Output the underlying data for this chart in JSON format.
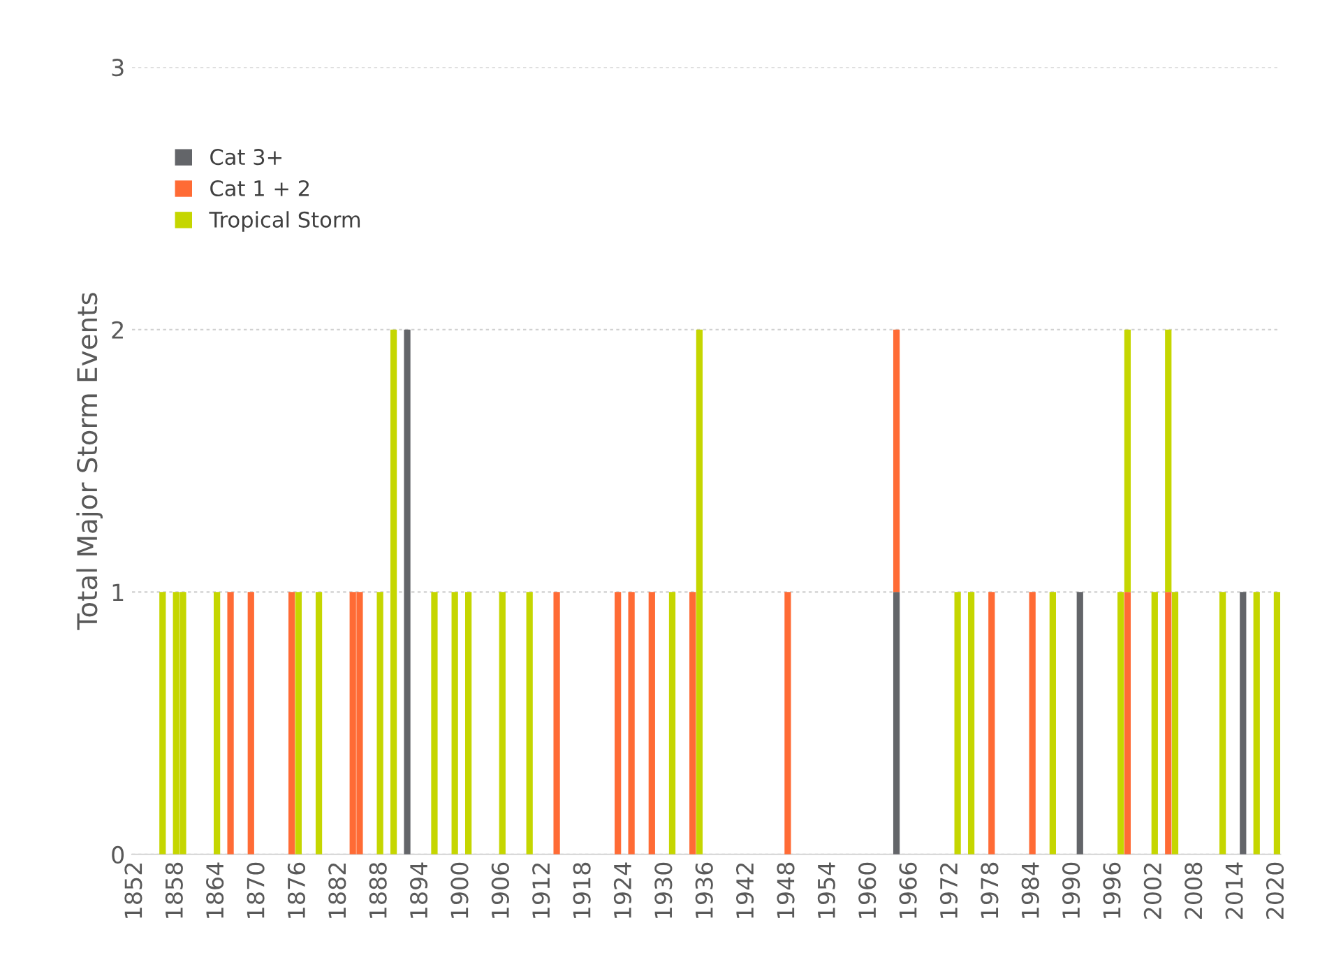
{
  "chart_data": {
    "type": "bar",
    "stacked": true,
    "ylabel": "Total Major Storm Events",
    "categories": [
      "1852",
      null,
      null,
      null,
      null,
      null,
      "1858",
      null,
      null,
      null,
      null,
      null,
      "1864",
      null,
      null,
      null,
      null,
      null,
      "1870",
      null,
      null,
      null,
      null,
      null,
      "1876",
      null,
      null,
      null,
      null,
      null,
      "1882",
      null,
      null,
      null,
      null,
      null,
      "1888",
      null,
      null,
      null,
      null,
      null,
      "1894",
      null,
      null,
      null,
      null,
      null,
      "1900",
      null,
      null,
      null,
      null,
      null,
      "1906",
      null,
      null,
      null,
      null,
      null,
      "1912",
      null,
      null,
      null,
      null,
      null,
      "1918",
      null,
      null,
      null,
      null,
      null,
      "1924",
      null,
      null,
      null,
      null,
      null,
      "1930",
      null,
      null,
      null,
      null,
      null,
      "1936",
      null,
      null,
      null,
      null,
      null,
      "1942",
      null,
      null,
      null,
      null,
      null,
      "1948",
      null,
      null,
      null,
      null,
      null,
      "1954",
      null,
      null,
      null,
      null,
      null,
      "1960",
      null,
      null,
      null,
      null,
      null,
      "1966",
      null,
      null,
      null,
      null,
      null,
      "1972",
      null,
      null,
      null,
      null,
      null,
      "1978",
      null,
      null,
      null,
      null,
      null,
      "1984",
      null,
      null,
      null,
      null,
      null,
      "1990",
      null,
      null,
      null,
      null,
      null,
      "1996",
      null,
      null,
      null,
      null,
      null,
      "2002",
      null,
      null,
      null,
      null,
      null,
      "2008",
      null,
      null,
      null,
      null,
      null,
      "2014",
      null,
      null,
      null,
      null,
      null,
      "2020"
    ],
    "series": [
      {
        "name": "Cat 3+",
        "color": "#636569",
        "values": [
          0,
          0,
          0,
          0,
          0,
          0,
          0,
          0,
          0,
          0,
          0,
          0,
          0,
          0,
          0,
          0,
          0,
          0,
          0,
          0,
          0,
          0,
          0,
          0,
          0,
          0,
          0,
          0,
          0,
          0,
          0,
          0,
          0,
          0,
          0,
          0,
          0,
          0,
          0,
          0,
          2,
          0,
          0,
          0,
          0,
          0,
          0,
          0,
          0,
          0,
          0,
          0,
          0,
          0,
          0,
          0,
          0,
          0,
          0,
          0,
          0,
          0,
          0,
          0,
          0,
          0,
          0,
          0,
          0,
          0,
          0,
          0,
          0,
          0,
          0,
          0,
          0,
          0,
          0,
          0,
          0,
          0,
          0,
          0,
          0,
          0,
          0,
          0,
          0,
          0,
          0,
          0,
          0,
          0,
          0,
          0,
          0,
          0,
          0,
          0,
          0,
          0,
          0,
          0,
          0,
          0,
          0,
          0,
          0,
          0,
          0,
          0,
          1,
          0,
          0,
          0,
          0,
          0,
          0,
          0,
          0,
          0,
          0,
          0,
          0,
          0,
          0,
          0,
          0,
          0,
          0,
          0,
          0,
          0,
          0,
          0,
          0,
          0,
          0,
          1,
          0,
          0,
          0,
          0,
          0,
          0,
          0,
          0,
          0,
          0,
          0,
          0,
          0,
          0,
          0,
          0,
          0,
          0,
          0,
          0,
          0,
          0,
          0,
          1,
          0,
          0,
          0,
          0,
          0
        ]
      },
      {
        "name": "Cat 1 + 2",
        "color": "#ff6b35",
        "values": [
          0,
          0,
          0,
          0,
          0,
          0,
          0,
          0,
          0,
          0,
          0,
          0,
          0,
          0,
          1,
          0,
          0,
          1,
          0,
          0,
          0,
          0,
          0,
          1,
          0,
          0,
          0,
          0,
          0,
          0,
          0,
          0,
          1,
          1,
          0,
          0,
          0,
          0,
          0,
          0,
          0,
          0,
          0,
          0,
          0,
          0,
          0,
          0,
          0,
          0,
          0,
          0,
          0,
          0,
          0,
          0,
          0,
          0,
          0,
          0,
          0,
          0,
          1,
          0,
          0,
          0,
          0,
          0,
          0,
          0,
          0,
          1,
          0,
          1,
          0,
          0,
          1,
          0,
          0,
          0,
          0,
          0,
          1,
          0,
          0,
          0,
          0,
          0,
          0,
          0,
          0,
          0,
          0,
          0,
          0,
          0,
          1,
          0,
          0,
          0,
          0,
          0,
          0,
          0,
          0,
          0,
          0,
          0,
          0,
          0,
          0,
          0,
          1,
          0,
          0,
          0,
          0,
          0,
          0,
          0,
          0,
          0,
          0,
          0,
          0,
          0,
          1,
          0,
          0,
          0,
          0,
          0,
          1,
          0,
          0,
          0,
          0,
          0,
          0,
          0,
          0,
          0,
          0,
          0,
          0,
          0,
          1,
          0,
          0,
          0,
          0,
          0,
          1,
          0,
          0,
          0,
          0,
          0,
          0,
          0,
          0,
          0,
          0,
          0,
          0,
          0,
          0,
          0,
          0
        ]
      },
      {
        "name": "Tropical Storm",
        "color": "#c5d600",
        "values": [
          0,
          0,
          0,
          0,
          1,
          0,
          1,
          1,
          0,
          0,
          0,
          0,
          1,
          0,
          0,
          0,
          0,
          0,
          0,
          0,
          0,
          0,
          0,
          0,
          1,
          0,
          0,
          1,
          0,
          0,
          0,
          0,
          0,
          0,
          0,
          0,
          1,
          0,
          2,
          0,
          0,
          0,
          0,
          0,
          1,
          0,
          0,
          1,
          0,
          1,
          0,
          0,
          0,
          0,
          1,
          0,
          0,
          0,
          1,
          0,
          0,
          0,
          0,
          0,
          0,
          0,
          0,
          0,
          0,
          0,
          0,
          0,
          0,
          0,
          0,
          0,
          0,
          0,
          0,
          1,
          0,
          0,
          0,
          2,
          0,
          0,
          0,
          0,
          0,
          0,
          0,
          0,
          0,
          0,
          0,
          0,
          0,
          0,
          0,
          0,
          0,
          0,
          0,
          0,
          0,
          0,
          0,
          0,
          0,
          0,
          0,
          0,
          0,
          0,
          0,
          0,
          0,
          0,
          0,
          0,
          0,
          1,
          0,
          1,
          0,
          0,
          0,
          0,
          0,
          0,
          0,
          0,
          0,
          0,
          0,
          1,
          0,
          0,
          0,
          0,
          0,
          0,
          0,
          0,
          0,
          1,
          1,
          0,
          0,
          0,
          1,
          0,
          1,
          1,
          0,
          0,
          0,
          0,
          0,
          0,
          1,
          0,
          0,
          0,
          0,
          1,
          0,
          0,
          1
        ]
      }
    ],
    "ylim": [
      0,
      3
    ],
    "yticks": [
      0,
      1,
      2,
      3
    ],
    "grid": "y",
    "legend": "top left"
  }
}
